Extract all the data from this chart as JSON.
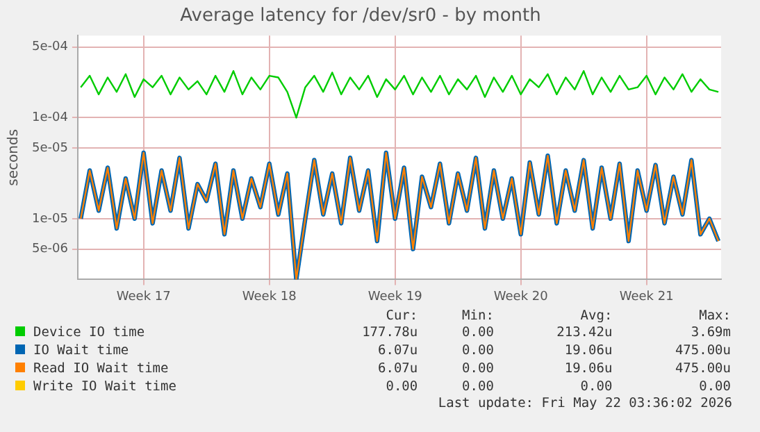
{
  "chart_data": {
    "type": "line",
    "title": "Average latency for /dev/sr0 - by month",
    "ylabel": "seconds",
    "log": "y",
    "grid": true,
    "legend": "bottom",
    "marker": "none",
    "line_style": "solid",
    "x": [
      "2026-04-16T12:00",
      "2026-04-17T00:00",
      "2026-04-17T12:00",
      "2026-04-18T00:00",
      "2026-04-18T12:00",
      "2026-04-19T00:00",
      "2026-04-19T12:00",
      "2026-04-20T00:00",
      "2026-04-20T12:00",
      "2026-04-21T00:00",
      "2026-04-21T12:00",
      "2026-04-22T00:00",
      "2026-04-22T12:00",
      "2026-04-23T00:00",
      "2026-04-23T12:00",
      "2026-04-24T00:00",
      "2026-04-24T12:00",
      "2026-04-25T00:00",
      "2026-04-25T12:00",
      "2026-04-26T00:00",
      "2026-04-26T12:00",
      "2026-04-27T00:00",
      "2026-04-27T12:00",
      "2026-04-28T00:00",
      "2026-04-28T12:00",
      "2026-04-29T00:00",
      "2026-04-29T12:00",
      "2026-04-30T00:00",
      "2026-04-30T12:00",
      "2026-05-01T00:00",
      "2026-05-01T12:00",
      "2026-05-02T00:00",
      "2026-05-02T12:00",
      "2026-05-03T00:00",
      "2026-05-03T12:00",
      "2026-05-04T00:00",
      "2026-05-04T12:00",
      "2026-05-05T00:00",
      "2026-05-05T12:00",
      "2026-05-06T00:00",
      "2026-05-06T12:00",
      "2026-05-07T00:00",
      "2026-05-07T12:00",
      "2026-05-08T00:00",
      "2026-05-08T12:00",
      "2026-05-09T00:00",
      "2026-05-09T12:00",
      "2026-05-10T00:00",
      "2026-05-10T12:00",
      "2026-05-11T00:00",
      "2026-05-11T12:00",
      "2026-05-12T00:00",
      "2026-05-12T12:00",
      "2026-05-13T00:00",
      "2026-05-13T12:00",
      "2026-05-14T00:00",
      "2026-05-14T12:00",
      "2026-05-15T00:00",
      "2026-05-15T12:00",
      "2026-05-16T00:00",
      "2026-05-16T12:00",
      "2026-05-17T00:00",
      "2026-05-17T12:00",
      "2026-05-18T00:00",
      "2026-05-18T12:00",
      "2026-05-19T00:00",
      "2026-05-19T12:00",
      "2026-05-20T00:00",
      "2026-05-20T12:00",
      "2026-05-21T00:00",
      "2026-05-21T12:00",
      "2026-05-22T00:00"
    ],
    "xlim": [
      "2026-04-16T08:00",
      "2026-05-22T03:36"
    ],
    "xticks": [
      {
        "value": "2026-04-20",
        "label": "Week 17"
      },
      {
        "value": "2026-04-27",
        "label": "Week 18"
      },
      {
        "value": "2026-05-04",
        "label": "Week 19"
      },
      {
        "value": "2026-05-11",
        "label": "Week 20"
      },
      {
        "value": "2026-05-18",
        "label": "Week 21"
      }
    ],
    "ylim": [
      2.5e-06,
      0.00065
    ],
    "yticks": [
      {
        "value": 5e-06,
        "label": "5e-06"
      },
      {
        "value": 1e-05,
        "label": "1e-05"
      },
      {
        "value": 5e-05,
        "label": "5e-05"
      },
      {
        "value": 0.0001,
        "label": "1e-04"
      },
      {
        "value": 0.0005,
        "label": "5e-04"
      }
    ],
    "series": [
      {
        "name": "Device IO time",
        "color": "#00cc00",
        "values": [
          0.0002,
          0.00026,
          0.00017,
          0.00025,
          0.00018,
          0.00027,
          0.00016,
          0.00024,
          0.0002,
          0.00026,
          0.00017,
          0.00025,
          0.00019,
          0.00023,
          0.00017,
          0.00026,
          0.00018,
          0.00029,
          0.00017,
          0.00025,
          0.00019,
          0.00026,
          0.00025,
          0.00018,
          0.0001,
          0.0002,
          0.00026,
          0.00018,
          0.00028,
          0.00017,
          0.00025,
          0.00019,
          0.00026,
          0.00016,
          0.00024,
          0.00019,
          0.00026,
          0.00017,
          0.00025,
          0.00018,
          0.00026,
          0.00017,
          0.00024,
          0.00019,
          0.00026,
          0.00016,
          0.00025,
          0.00018,
          0.00026,
          0.00017,
          0.00024,
          0.0002,
          0.00027,
          0.00017,
          0.00025,
          0.00019,
          0.00029,
          0.00017,
          0.00025,
          0.00018,
          0.00026,
          0.00019,
          0.0002,
          0.00026,
          0.00017,
          0.00025,
          0.00019,
          0.00027,
          0.00018,
          0.00024,
          0.00019,
          0.00018
        ]
      },
      {
        "name": "IO Wait time",
        "color": "#0066b3",
        "values": [
          1e-05,
          3e-05,
          1.2e-05,
          3.2e-05,
          8e-06,
          2.5e-05,
          1e-05,
          4.5e-05,
          9e-06,
          3e-05,
          1.2e-05,
          4e-05,
          8e-06,
          2.2e-05,
          1.5e-05,
          3.5e-05,
          7e-06,
          3e-05,
          1e-05,
          2.5e-05,
          1.3e-05,
          3.5e-05,
          1.1e-05,
          2.8e-05,
          2.5e-06,
          1e-05,
          3.8e-05,
          1.1e-05,
          2.8e-05,
          9e-06,
          4e-05,
          1.2e-05,
          3e-05,
          6e-06,
          4.5e-05,
          1e-05,
          3.2e-05,
          5e-06,
          2.6e-05,
          1.3e-05,
          3.5e-05,
          9e-06,
          2.8e-05,
          1.2e-05,
          4e-05,
          8e-06,
          3e-05,
          1e-05,
          2.5e-05,
          7e-06,
          3.6e-05,
          1.1e-05,
          4.2e-05,
          9e-06,
          3e-05,
          1.2e-05,
          3.8e-05,
          8e-06,
          3.2e-05,
          1e-05,
          3.5e-05,
          6e-06,
          3e-05,
          1.2e-05,
          3.4e-05,
          9e-06,
          2.6e-05,
          1.1e-05,
          3.8e-05,
          7e-06,
          1e-05,
          6e-06
        ]
      },
      {
        "name": "Read IO Wait time",
        "color": "#ff8000",
        "values": [
          1e-05,
          3e-05,
          1.2e-05,
          3.2e-05,
          8e-06,
          2.5e-05,
          1e-05,
          4.5e-05,
          9e-06,
          3e-05,
          1.2e-05,
          4e-05,
          8e-06,
          2.2e-05,
          1.5e-05,
          3.5e-05,
          7e-06,
          3e-05,
          1e-05,
          2.5e-05,
          1.3e-05,
          3.5e-05,
          1.1e-05,
          2.8e-05,
          2.5e-06,
          1e-05,
          3.8e-05,
          1.1e-05,
          2.8e-05,
          9e-06,
          4e-05,
          1.2e-05,
          3e-05,
          6e-06,
          4.5e-05,
          1e-05,
          3.2e-05,
          5e-06,
          2.6e-05,
          1.3e-05,
          3.5e-05,
          9e-06,
          2.8e-05,
          1.2e-05,
          4e-05,
          8e-06,
          3e-05,
          1e-05,
          2.5e-05,
          7e-06,
          3.6e-05,
          1.1e-05,
          4.2e-05,
          9e-06,
          3e-05,
          1.2e-05,
          3.8e-05,
          8e-06,
          3.2e-05,
          1e-05,
          3.5e-05,
          6e-06,
          3e-05,
          1.2e-05,
          3.4e-05,
          9e-06,
          2.6e-05,
          1.1e-05,
          3.8e-05,
          7e-06,
          1e-05,
          6e-06
        ]
      },
      {
        "name": "Write IO Wait time",
        "color": "#ffcc00",
        "values": [
          null,
          null,
          null,
          null,
          null,
          null,
          null,
          null,
          null,
          null,
          null,
          null,
          null,
          null,
          null,
          null,
          null,
          null,
          null,
          null,
          null,
          null,
          null,
          null,
          null,
          null,
          null,
          null,
          null,
          null,
          null,
          null,
          null,
          null,
          null,
          null,
          null,
          null,
          null,
          null,
          null,
          null,
          null,
          null,
          null,
          null,
          null,
          null,
          null,
          null,
          null,
          null,
          null,
          null,
          null,
          null,
          null,
          null,
          null,
          null,
          null,
          null,
          null,
          null,
          null,
          null,
          null,
          null,
          null,
          null,
          null,
          null
        ]
      }
    ],
    "annotations": [
      "Cur:",
      "Min:",
      "Avg:",
      "Max:",
      "177.78u",
      "0.00",
      "213.42u",
      "3.69m",
      "6.07u",
      "0.00",
      "19.06u",
      "475.00u",
      "6.07u",
      "0.00",
      "19.06u",
      "475.00u",
      "0.00",
      "0.00",
      "0.00",
      "0.00",
      "Last update: Fri May 22 03:36:02 2026"
    ]
  }
}
